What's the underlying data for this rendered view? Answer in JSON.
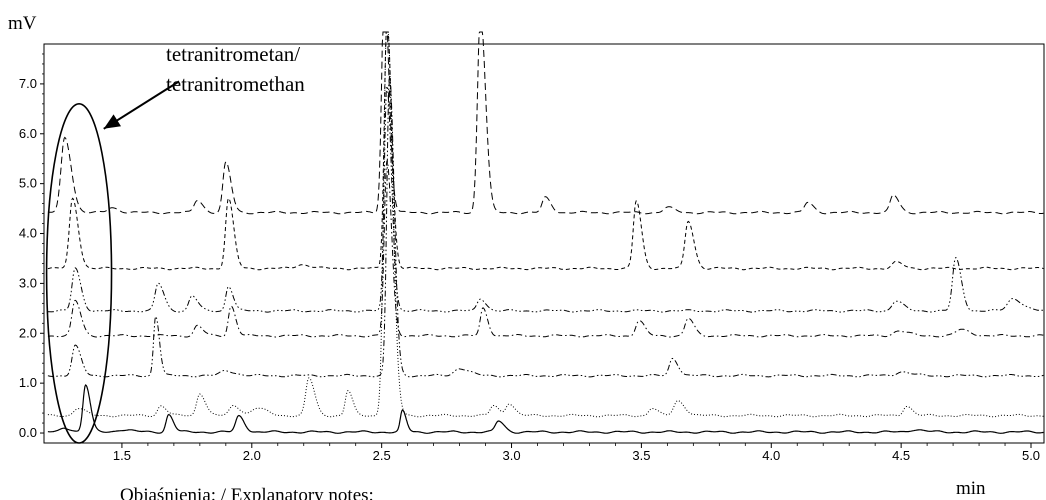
{
  "chart_data": {
    "type": "line",
    "y_unit_label": "mV",
    "x_unit_label": "min",
    "xlim": [
      1.2,
      5.05
    ],
    "ylim": [
      -0.2,
      7.8
    ],
    "x_ticks": [
      "1.5",
      "2.0",
      "2.5",
      "3.0",
      "3.5",
      "4.0",
      "4.5",
      "5.0"
    ],
    "y_ticks": [
      "0.0",
      "1.0",
      "2.0",
      "3.0",
      "4.0",
      "5.0",
      "6.0",
      "7.0"
    ],
    "grid": false,
    "annotation": {
      "line1": "tetranitrometan/",
      "line2": "tetranitromethan",
      "ellipse_x_range": [
        1.21,
        1.46
      ],
      "ellipse_y_range": [
        -0.2,
        6.6
      ],
      "arrow_from": [
        1.72,
        7.05
      ],
      "arrow_to": [
        1.43,
        6.1
      ]
    },
    "footer_text": "Objaśnienia: / Explanatory notes:",
    "series": [
      {
        "style": "solid",
        "baseline": 0.02,
        "peaks": [
          [
            1.28,
            0.08,
            0.015
          ],
          [
            1.36,
            0.95,
            0.01
          ],
          [
            1.5,
            0.05,
            0.02
          ],
          [
            1.68,
            0.35,
            0.01
          ],
          [
            1.95,
            0.32,
            0.012
          ],
          [
            2.58,
            0.42,
            0.008
          ],
          [
            2.95,
            0.22,
            0.012
          ],
          [
            4.55,
            0.05,
            0.02
          ]
        ]
      },
      {
        "style": "dotted",
        "baseline": 0.35,
        "peaks": [
          [
            1.33,
            0.15,
            0.015
          ],
          [
            1.65,
            0.2,
            0.012
          ],
          [
            1.8,
            0.45,
            0.012
          ],
          [
            1.93,
            0.2,
            0.015
          ],
          [
            2.02,
            0.15,
            0.02
          ],
          [
            2.22,
            0.75,
            0.012
          ],
          [
            2.37,
            0.5,
            0.01
          ],
          [
            2.52,
            8.0,
            0.012
          ],
          [
            2.93,
            0.2,
            0.012
          ],
          [
            2.99,
            0.25,
            0.012
          ],
          [
            3.54,
            0.15,
            0.012
          ],
          [
            3.64,
            0.3,
            0.015
          ],
          [
            4.52,
            0.2,
            0.012
          ]
        ]
      },
      {
        "style": "dash-dot-dot",
        "baseline": 1.15,
        "peaks": [
          [
            1.32,
            0.6,
            0.012
          ],
          [
            1.63,
            1.2,
            0.008
          ],
          [
            1.9,
            0.1,
            0.02
          ],
          [
            2.53,
            6.0,
            0.01
          ],
          [
            2.8,
            0.15,
            0.02
          ],
          [
            3.62,
            0.35,
            0.012
          ],
          [
            4.5,
            0.08,
            0.02
          ]
        ]
      },
      {
        "style": "dash-dot",
        "baseline": 1.95,
        "peaks": [
          [
            1.32,
            0.7,
            0.012
          ],
          [
            1.79,
            0.2,
            0.012
          ],
          [
            1.92,
            0.6,
            0.01
          ],
          [
            2.52,
            3.5,
            0.01
          ],
          [
            2.89,
            0.55,
            0.01
          ],
          [
            3.49,
            0.3,
            0.012
          ],
          [
            3.68,
            0.35,
            0.012
          ],
          [
            4.49,
            0.1,
            0.02
          ],
          [
            4.73,
            0.12,
            0.02
          ]
        ]
      },
      {
        "style": "dash-dot-dot-dot",
        "baseline": 2.45,
        "peaks": [
          [
            1.32,
            0.85,
            0.012
          ],
          [
            1.64,
            0.55,
            0.012
          ],
          [
            1.77,
            0.3,
            0.012
          ],
          [
            1.91,
            0.5,
            0.01
          ],
          [
            2.52,
            4.5,
            0.01
          ],
          [
            2.88,
            0.25,
            0.012
          ],
          [
            4.48,
            0.2,
            0.015
          ],
          [
            4.71,
            1.05,
            0.012
          ],
          [
            4.93,
            0.25,
            0.02
          ]
        ]
      },
      {
        "style": "short-dash",
        "baseline": 3.3,
        "peaks": [
          [
            1.31,
            1.4,
            0.012
          ],
          [
            1.91,
            1.4,
            0.011
          ],
          [
            2.19,
            0.08,
            0.02
          ],
          [
            2.52,
            5.0,
            0.01
          ],
          [
            3.48,
            1.35,
            0.011
          ],
          [
            3.68,
            0.95,
            0.012
          ],
          [
            4.48,
            0.12,
            0.015
          ]
        ]
      },
      {
        "style": "long-dash",
        "baseline": 4.42,
        "peaks": [
          [
            1.28,
            1.5,
            0.014
          ],
          [
            1.46,
            0.1,
            0.015
          ],
          [
            1.79,
            0.25,
            0.012
          ],
          [
            1.9,
            1.0,
            0.011
          ],
          [
            2.51,
            4.5,
            0.01
          ],
          [
            2.88,
            4.0,
            0.011
          ],
          [
            3.13,
            0.3,
            0.012
          ],
          [
            3.6,
            0.1,
            0.015
          ],
          [
            4.14,
            0.2,
            0.012
          ],
          [
            4.47,
            0.35,
            0.012
          ]
        ]
      }
    ]
  }
}
